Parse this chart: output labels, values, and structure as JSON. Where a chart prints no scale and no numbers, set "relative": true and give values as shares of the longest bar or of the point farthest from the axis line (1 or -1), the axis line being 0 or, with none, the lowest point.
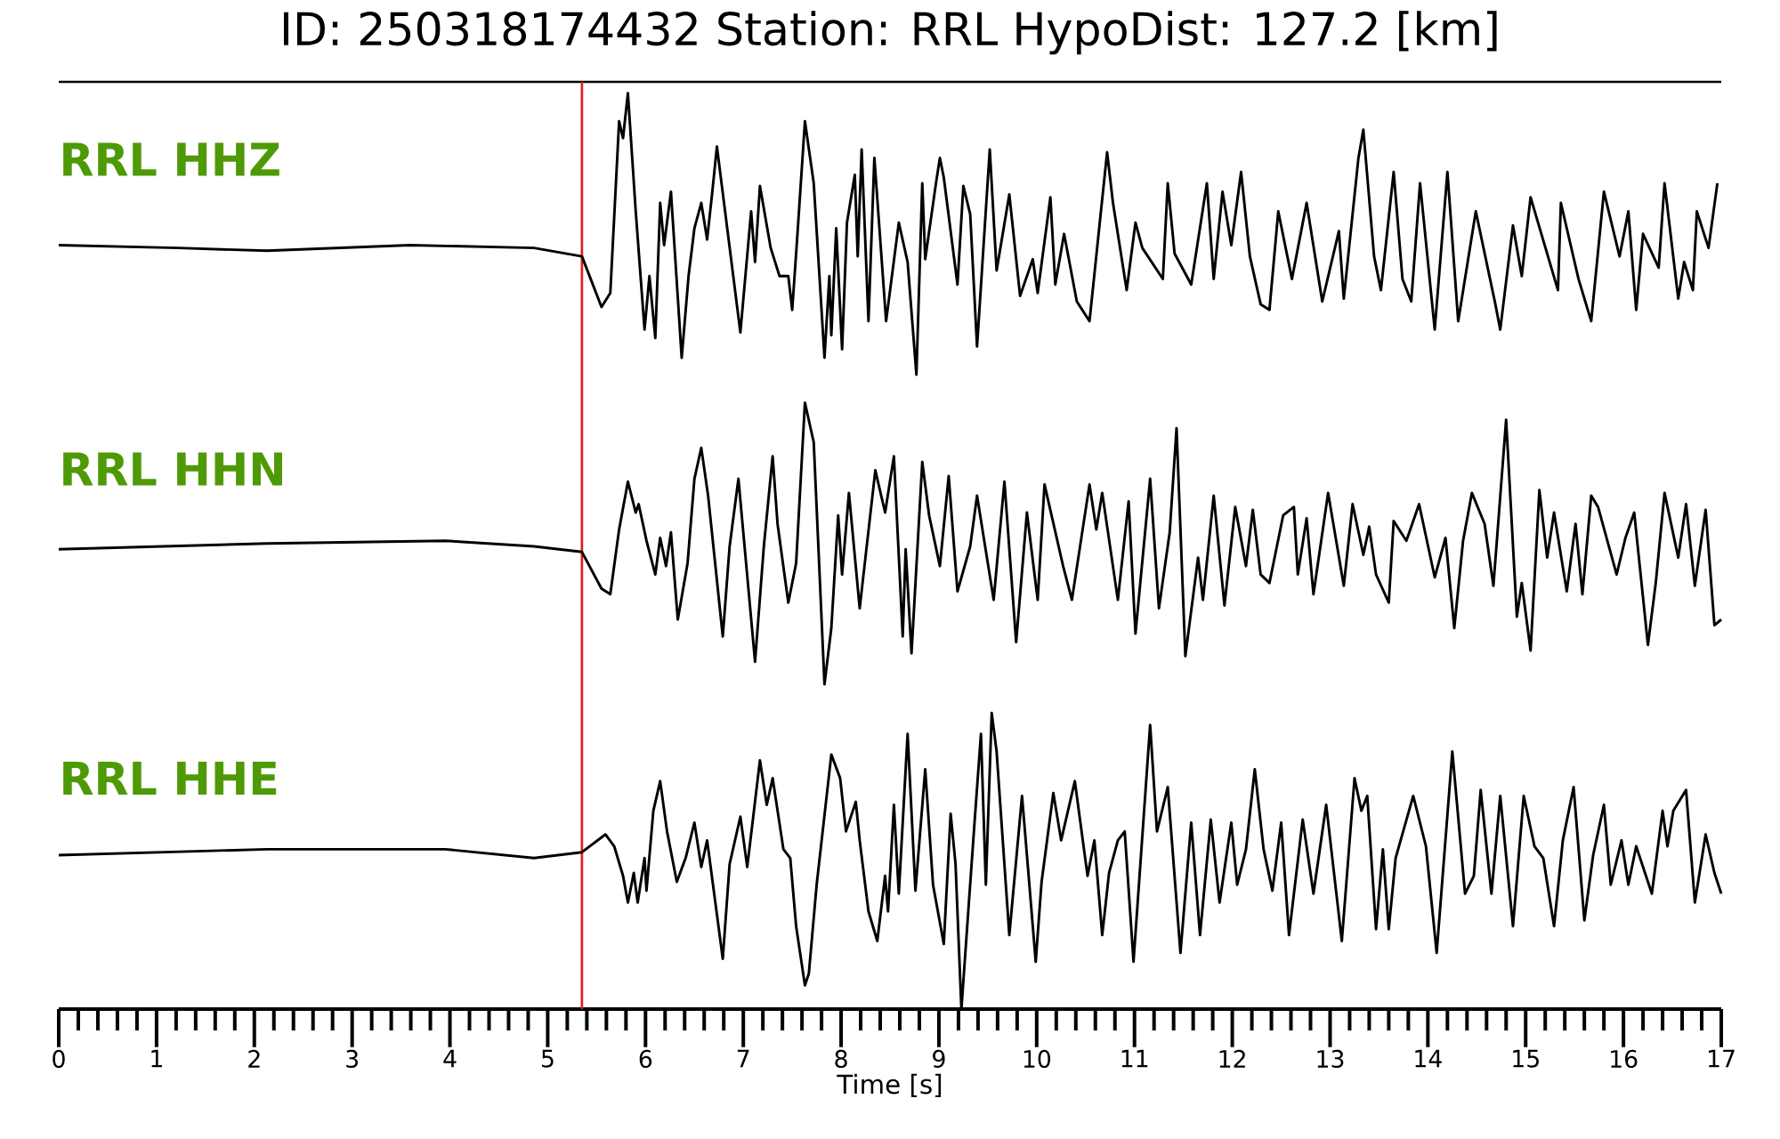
{
  "chart_data": [
    {
      "type": "line",
      "title": "ID: 250318174432 Station: RRL HypoDist: 127.2 [km]",
      "annotations": [
        "RRL HHZ"
      ],
      "relative": true,
      "color": "#000000",
      "xlim": [
        0,
        17
      ],
      "tick_labels": false,
      "ref_lines": [
        {
          "axis": "x",
          "value": 5.35,
          "color": "#e31a1c"
        }
      ],
      "x": [
        0,
        1.22,
        2.13,
        3.59,
        4.86,
        5.35,
        5.55,
        5.64,
        5.73,
        5.77,
        5.82,
        5.9,
        5.99,
        6.04,
        6.1,
        6.15,
        6.19,
        6.26,
        6.37,
        6.44,
        6.5,
        6.57,
        6.63,
        6.68,
        6.73,
        6.81,
        6.97,
        7.08,
        7.12,
        7.17,
        7.28,
        7.37,
        7.46,
        7.5,
        7.55,
        7.63,
        7.72,
        7.83,
        7.88,
        7.9,
        7.95,
        8.01,
        8.06,
        8.14,
        8.17,
        8.21,
        8.28,
        8.34,
        8.46,
        8.59,
        8.68,
        8.77,
        8.83,
        8.86,
        8.97,
        9.01,
        9.05,
        9.19,
        9.25,
        9.32,
        9.39,
        9.52,
        9.59,
        9.72,
        9.83,
        9.96,
        10.01,
        10.14,
        10.19,
        10.28,
        10.41,
        10.54,
        10.72,
        10.78,
        10.92,
        11.01,
        11.08,
        11.29,
        11.34,
        11.41,
        11.58,
        11.74,
        11.81,
        11.9,
        11.99,
        12.09,
        12.18,
        12.29,
        12.38,
        12.47,
        12.61,
        12.76,
        12.92,
        13.09,
        13.14,
        13.29,
        13.34,
        13.45,
        13.52,
        13.65,
        13.74,
        13.83,
        13.92,
        14.07,
        14.2,
        14.31,
        14.49,
        14.69,
        14.74,
        14.87,
        14.96,
        15.05,
        15.33,
        15.36,
        15.54,
        15.67,
        15.8,
        15.96,
        16.05,
        16.13,
        16.2,
        16.36,
        16.42,
        16.56,
        16.62,
        16.71,
        16.75,
        16.87,
        16.96
      ],
      "values": [
        0.46,
        0.45,
        0.44,
        0.46,
        0.45,
        0.42,
        0.24,
        0.29,
        0.9,
        0.84,
        1,
        0.58,
        0.16,
        0.35,
        0.13,
        0.61,
        0.46,
        0.65,
        0.06,
        0.35,
        0.52,
        0.61,
        0.48,
        0.64,
        0.81,
        0.59,
        0.15,
        0.58,
        0.4,
        0.67,
        0.45,
        0.35,
        0.35,
        0.23,
        0.48,
        0.9,
        0.68,
        0.06,
        0.35,
        0.14,
        0.52,
        0.09,
        0.54,
        0.71,
        0.42,
        0.8,
        0.19,
        0.77,
        0.19,
        0.54,
        0.4,
        0,
        0.68,
        0.41,
        0.68,
        0.77,
        0.7,
        0.32,
        0.67,
        0.57,
        0.1,
        0.8,
        0.37,
        0.64,
        0.28,
        0.41,
        0.29,
        0.63,
        0.32,
        0.5,
        0.26,
        0.19,
        0.79,
        0.61,
        0.3,
        0.54,
        0.45,
        0.34,
        0.68,
        0.43,
        0.32,
        0.68,
        0.34,
        0.65,
        0.46,
        0.72,
        0.42,
        0.25,
        0.23,
        0.58,
        0.34,
        0.61,
        0.26,
        0.51,
        0.27,
        0.77,
        0.87,
        0.42,
        0.3,
        0.72,
        0.34,
        0.26,
        0.68,
        0.16,
        0.72,
        0.19,
        0.58,
        0.25,
        0.16,
        0.53,
        0.35,
        0.63,
        0.3,
        0.61,
        0.34,
        0.19,
        0.65,
        0.42,
        0.58,
        0.23,
        0.5,
        0.38,
        0.68,
        0.27,
        0.4,
        0.3,
        0.58,
        0.45,
        0.68
      ]
    },
    {
      "type": "line",
      "annotations": [
        "RRL HHN"
      ],
      "relative": true,
      "color": "#000000",
      "xlim": [
        0,
        17
      ],
      "tick_labels": false,
      "ref_lines": [
        {
          "axis": "x",
          "value": 5.35,
          "color": "#e31a1c"
        }
      ],
      "x": [
        0,
        2.13,
        3.95,
        4.86,
        5.35,
        5.55,
        5.64,
        5.73,
        5.82,
        5.9,
        5.93,
        6.01,
        6.1,
        6.15,
        6.21,
        6.26,
        6.33,
        6.43,
        6.5,
        6.57,
        6.64,
        6.79,
        6.86,
        6.95,
        7.12,
        7.21,
        7.3,
        7.35,
        7.46,
        7.54,
        7.63,
        7.72,
        7.83,
        7.9,
        7.97,
        8.01,
        8.08,
        8.19,
        8.35,
        8.45,
        8.54,
        8.63,
        8.66,
        8.72,
        8.83,
        8.9,
        9.01,
        9.1,
        9.19,
        9.32,
        9.39,
        9.56,
        9.67,
        9.79,
        9.9,
        10.01,
        10.08,
        10.27,
        10.36,
        10.54,
        10.61,
        10.67,
        10.83,
        10.94,
        11.01,
        11.16,
        11.25,
        11.36,
        11.43,
        11.52,
        11.65,
        11.7,
        11.81,
        11.92,
        12.03,
        12.14,
        12.21,
        12.29,
        12.38,
        12.52,
        12.63,
        12.67,
        12.76,
        12.83,
        12.98,
        13.14,
        13.23,
        13.34,
        13.4,
        13.47,
        13.6,
        13.65,
        13.78,
        13.91,
        14.07,
        14.18,
        14.27,
        14.36,
        14.45,
        14.58,
        14.67,
        14.8,
        14.91,
        14.96,
        15.05,
        15.14,
        15.22,
        15.29,
        15.42,
        15.51,
        15.58,
        15.67,
        15.74,
        15.93,
        16.02,
        16.11,
        16.25,
        16.33,
        16.42,
        16.56,
        16.64,
        16.73,
        16.84,
        16.93,
        17
      ],
      "values": [
        0.48,
        0.5,
        0.51,
        0.49,
        0.47,
        0.34,
        0.32,
        0.55,
        0.72,
        0.61,
        0.64,
        0.51,
        0.39,
        0.52,
        0.42,
        0.54,
        0.23,
        0.43,
        0.73,
        0.84,
        0.67,
        0.17,
        0.49,
        0.73,
        0.08,
        0.49,
        0.81,
        0.57,
        0.29,
        0.43,
        1,
        0.86,
        0,
        0.2,
        0.6,
        0.39,
        0.68,
        0.27,
        0.76,
        0.61,
        0.81,
        0.17,
        0.48,
        0.11,
        0.79,
        0.6,
        0.42,
        0.74,
        0.33,
        0.49,
        0.67,
        0.3,
        0.72,
        0.15,
        0.61,
        0.3,
        0.71,
        0.42,
        0.3,
        0.71,
        0.55,
        0.68,
        0.3,
        0.65,
        0.18,
        0.73,
        0.27,
        0.54,
        0.91,
        0.1,
        0.45,
        0.3,
        0.67,
        0.28,
        0.63,
        0.42,
        0.62,
        0.39,
        0.36,
        0.6,
        0.63,
        0.39,
        0.59,
        0.32,
        0.68,
        0.35,
        0.64,
        0.46,
        0.56,
        0.39,
        0.29,
        0.58,
        0.51,
        0.64,
        0.38,
        0.52,
        0.2,
        0.51,
        0.68,
        0.57,
        0.35,
        0.94,
        0.24,
        0.36,
        0.12,
        0.69,
        0.45,
        0.61,
        0.33,
        0.57,
        0.32,
        0.67,
        0.63,
        0.39,
        0.52,
        0.61,
        0.14,
        0.36,
        0.68,
        0.45,
        0.64,
        0.35,
        0.62,
        0.21,
        0.23
      ]
    },
    {
      "type": "line",
      "annotations": [
        "RRL HHE"
      ],
      "xlabel": "Time [s]",
      "relative": true,
      "color": "#000000",
      "xlim": [
        0,
        17
      ],
      "xticks": [
        0,
        1,
        2,
        3,
        4,
        5,
        6,
        7,
        8,
        9,
        10,
        11,
        12,
        13,
        14,
        15,
        16,
        17
      ],
      "tick_labels": "x",
      "ref_lines": [
        {
          "axis": "x",
          "value": 5.35,
          "color": "#e31a1c"
        }
      ],
      "x": [
        0,
        2.13,
        3.95,
        4.86,
        5.35,
        5.59,
        5.68,
        5.77,
        5.82,
        5.88,
        5.92,
        5.99,
        6.01,
        6.08,
        6.15,
        6.22,
        6.32,
        6.41,
        6.5,
        6.57,
        6.63,
        6.79,
        6.86,
        6.97,
        7.04,
        7.17,
        7.24,
        7.3,
        7.41,
        7.48,
        7.54,
        7.63,
        7.67,
        7.75,
        7.9,
        7.99,
        8.05,
        8.15,
        8.19,
        8.28,
        8.37,
        8.45,
        8.48,
        8.54,
        8.59,
        8.68,
        8.76,
        8.86,
        8.94,
        9.05,
        9.12,
        9.17,
        9.23,
        9.36,
        9.43,
        9.48,
        9.54,
        9.59,
        9.72,
        9.85,
        9.99,
        10.05,
        10.17,
        10.25,
        10.39,
        10.52,
        10.59,
        10.67,
        10.74,
        10.83,
        10.9,
        10.99,
        11.16,
        11.23,
        11.34,
        11.47,
        11.58,
        11.67,
        11.78,
        11.87,
        11.99,
        12.05,
        12.14,
        12.23,
        12.32,
        12.41,
        12.5,
        12.58,
        12.72,
        12.83,
        12.96,
        13.12,
        13.25,
        13.32,
        13.38,
        13.47,
        13.54,
        13.6,
        13.67,
        13.85,
        13.98,
        14.09,
        14.25,
        14.38,
        14.47,
        14.54,
        14.65,
        14.74,
        14.87,
        14.98,
        15.09,
        15.18,
        15.29,
        15.38,
        15.49,
        15.6,
        15.69,
        15.8,
        15.87,
        15.98,
        16.05,
        16.13,
        16.29,
        16.4,
        16.45,
        16.51,
        16.64,
        16.73,
        16.84,
        16.93,
        17
      ],
      "values": [
        0.52,
        0.54,
        0.54,
        0.51,
        0.53,
        0.59,
        0.55,
        0.45,
        0.36,
        0.46,
        0.36,
        0.51,
        0.4,
        0.67,
        0.77,
        0.6,
        0.43,
        0.51,
        0.63,
        0.48,
        0.57,
        0.17,
        0.49,
        0.65,
        0.48,
        0.84,
        0.69,
        0.78,
        0.54,
        0.51,
        0.28,
        0.08,
        0.12,
        0.42,
        0.86,
        0.78,
        0.6,
        0.7,
        0.57,
        0.33,
        0.23,
        0.45,
        0.33,
        0.69,
        0.39,
        0.93,
        0.4,
        0.81,
        0.42,
        0.22,
        0.66,
        0.49,
        0,
        0.61,
        0.93,
        0.42,
        1,
        0.87,
        0.25,
        0.72,
        0.16,
        0.43,
        0.73,
        0.57,
        0.77,
        0.45,
        0.57,
        0.25,
        0.46,
        0.57,
        0.6,
        0.16,
        0.96,
        0.6,
        0.75,
        0.19,
        0.63,
        0.25,
        0.64,
        0.36,
        0.63,
        0.42,
        0.54,
        0.81,
        0.54,
        0.4,
        0.63,
        0.25,
        0.64,
        0.39,
        0.69,
        0.23,
        0.78,
        0.67,
        0.72,
        0.27,
        0.54,
        0.27,
        0.51,
        0.72,
        0.55,
        0.19,
        0.87,
        0.39,
        0.45,
        0.74,
        0.39,
        0.72,
        0.28,
        0.72,
        0.55,
        0.51,
        0.28,
        0.57,
        0.75,
        0.3,
        0.52,
        0.69,
        0.42,
        0.57,
        0.42,
        0.55,
        0.39,
        0.67,
        0.55,
        0.67,
        0.74,
        0.36,
        0.59,
        0.46,
        0.39
      ]
    }
  ]
}
